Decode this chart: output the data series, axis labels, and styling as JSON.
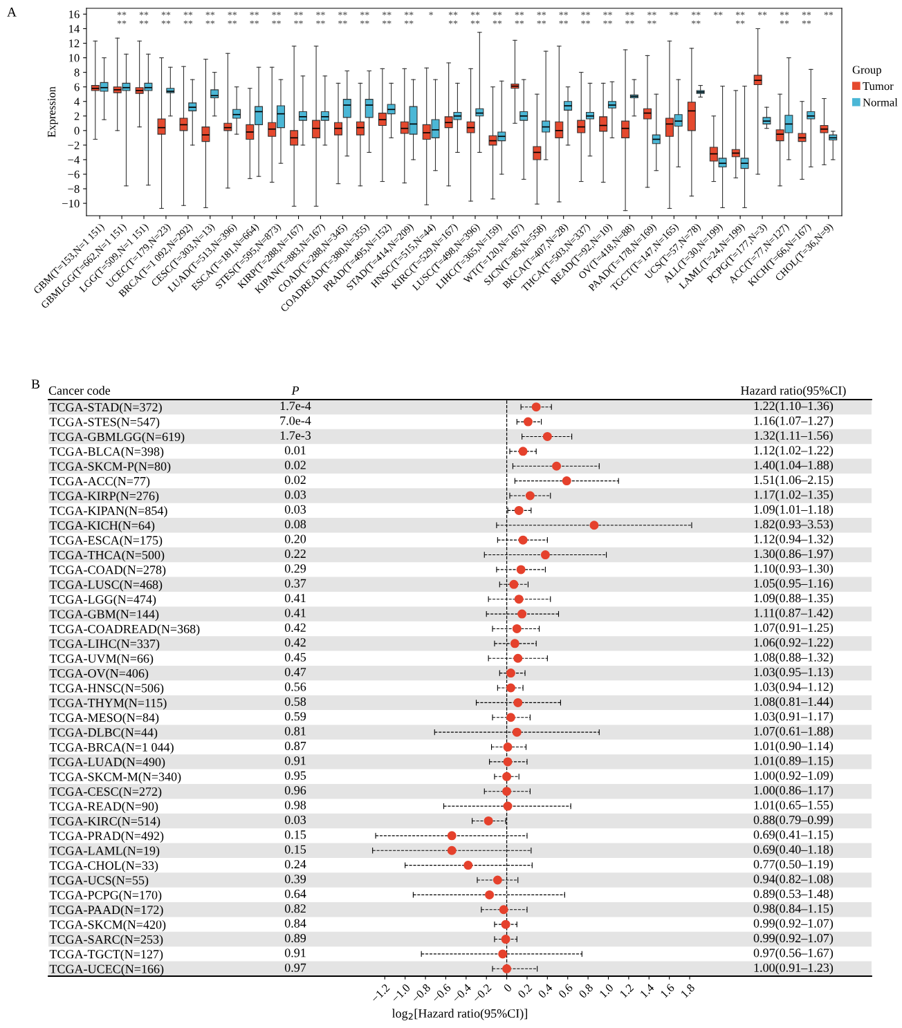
{
  "chart_data": [
    {
      "type": "box",
      "title": "A",
      "ylabel": "Expression",
      "ylim": [
        -11.7,
        16.8
      ],
      "yticks": [
        -10,
        -8,
        -6,
        -4,
        -2,
        0,
        2,
        4,
        6,
        8,
        10,
        12,
        14,
        16
      ],
      "grid": false,
      "legend": "right",
      "legend_title": "Group",
      "categories": [
        "GBM(T=153,N=1 151)",
        "GBMLGG(T=662,N=1 151)",
        "LGG(T=509,N=1 151)",
        "UCEC(T=179,N=23)",
        "BRCA(T=1 092,N=292)",
        "CESC(T=303,N=13)",
        "LUAD(T=513,N=396)",
        "ESCA(T=181,N=664)",
        "STES(T=595,N=873)",
        "KIRP(T=288,N=167)",
        "KIPAN(T=883,N=167)",
        "COAD(T=288,N=345)",
        "COADREAD(T=380,N=355)",
        "PRAD(T=495,N=152)",
        "STAD(T=414,N=209)",
        "HNSC(T=515,N=44)",
        "KIRC(T=529,N=167)",
        "LUSC(T=498,N=396)",
        "LIHC(T=365,N=159)",
        "WT(T=120,N=167)",
        "SJCN(T=85,N=558)",
        "BKCA(T=407,N=28)",
        "THCA(T=503,N=337)",
        "READ(T=92,N=10)",
        "OV(T=418,N=88)",
        "PAAD(T=178,N=169)",
        "TGCT(T=147,N=165)",
        "UCS(T=57,N=78)",
        "ALL(T=30,N=199)",
        "LAML(T=24,N=199)",
        "PCPG(T=177,N=3)",
        "ACC(T=77,N=127)",
        "KICH(T=66,N=167)",
        "CHOL(T=36,N=9)"
      ],
      "series": [
        {
          "name": "Tumor",
          "color": "#e5492e",
          "boxes": [
            {
              "low": -1.2,
              "q1": 5.5,
              "median": 5.8,
              "q3": 6.2,
              "high": 12.3
            },
            {
              "low": 0,
              "q1": 5.2,
              "median": 5.6,
              "q3": 6.0,
              "high": 12.7
            },
            {
              "low": 0.5,
              "q1": 5.1,
              "median": 5.5,
              "q3": 5.9,
              "high": 12.3
            },
            {
              "low": -10.7,
              "q1": -0.5,
              "median": 0.4,
              "q3": 1.6,
              "high": 10.0
            },
            {
              "low": -10.3,
              "q1": 0.0,
              "median": 0.8,
              "q3": 1.7,
              "high": 8.8
            },
            {
              "low": -10.6,
              "q1": -1.5,
              "median": -0.6,
              "q3": 0.5,
              "high": 9.8
            },
            {
              "low": -7.9,
              "q1": 0,
              "median": 0.4,
              "q3": 1.0,
              "high": 10.6
            },
            {
              "low": -6.6,
              "q1": -1.2,
              "median": -0.2,
              "q3": 0.8,
              "high": 5.8
            },
            {
              "low": -7.1,
              "q1": -0.8,
              "median": 0.2,
              "q3": 1.1,
              "high": 8.7
            },
            {
              "low": -10.4,
              "q1": -2.0,
              "median": -1.0,
              "q3": 0.0,
              "high": 11.6
            },
            {
              "low": -10.4,
              "q1": -1.0,
              "median": 0.3,
              "q3": 1.4,
              "high": 11.6
            },
            {
              "low": -7.3,
              "q1": -0.6,
              "median": 0.3,
              "q3": 1.1,
              "high": 6.5
            },
            {
              "low": -7.6,
              "q1": -0.6,
              "median": 0.4,
              "q3": 1.2,
              "high": 6.5
            },
            {
              "low": -7.0,
              "q1": 0.7,
              "median": 1.5,
              "q3": 2.4,
              "high": 8.5
            },
            {
              "low": -7.2,
              "q1": -0.4,
              "median": 0.3,
              "q3": 1.2,
              "high": 8.5
            },
            {
              "low": -10.2,
              "q1": -1.2,
              "median": -0.3,
              "q3": 0.8,
              "high": 8.6
            },
            {
              "low": -7.6,
              "q1": 0.4,
              "median": 1.1,
              "q3": 1.9,
              "high": 9.3
            },
            {
              "low": -9.7,
              "q1": -0.3,
              "median": 0.4,
              "q3": 1.2,
              "high": 8.5
            },
            {
              "low": -9.4,
              "q1": -2.0,
              "median": -1.4,
              "q3": -0.7,
              "high": 6.0
            },
            {
              "low": 1.0,
              "q1": 5.8,
              "median": 6.1,
              "q3": 6.4,
              "high": 12.4
            },
            {
              "low": -10.1,
              "q1": -4.0,
              "median": -3.0,
              "q3": -2.2,
              "high": 5.0
            },
            {
              "low": -9.8,
              "q1": -1.0,
              "median": 0,
              "q3": 1.2,
              "high": 11.6
            },
            {
              "low": -7.0,
              "q1": -0.3,
              "median": 0.5,
              "q3": 1.4,
              "high": 8.0
            },
            {
              "low": -7.1,
              "q1": -0.1,
              "median": 0.7,
              "q3": 1.9,
              "high": 6.5
            },
            {
              "low": -11.0,
              "q1": -1.0,
              "median": 0.3,
              "q3": 1.3,
              "high": 11.1
            },
            {
              "low": -7.8,
              "q1": 1.6,
              "median": 2.4,
              "q3": 3.0,
              "high": 10.3
            },
            {
              "low": -10.7,
              "q1": -0.8,
              "median": 0.9,
              "q3": 1.7,
              "high": 12.3
            },
            {
              "low": -9.0,
              "q1": 0.0,
              "median": 2.7,
              "q3": 3.9,
              "high": 11.3
            },
            {
              "low": -7.0,
              "q1": -4.2,
              "median": -3.2,
              "q3": -2.3,
              "high": 2.0
            },
            {
              "low": -6.5,
              "q1": -3.6,
              "median": -3.1,
              "q3": -2.6,
              "high": 5.5
            },
            {
              "low": -6.0,
              "q1": 6.3,
              "median": 6.9,
              "q3": 7.6,
              "high": 14.0
            },
            {
              "low": -7.6,
              "q1": -1.4,
              "median": -0.5,
              "q3": 0.1,
              "high": 5.0
            },
            {
              "low": -6.7,
              "q1": -1.5,
              "median": -1.0,
              "q3": -0.4,
              "high": 4.0
            },
            {
              "low": -4.7,
              "q1": -0.3,
              "median": 0.2,
              "q3": 0.7,
              "high": 4.4
            }
          ]
        },
        {
          "name": "Normal",
          "color": "#4bb7d6",
          "boxes": [
            {
              "low": 1.5,
              "q1": 5.4,
              "median": 5.9,
              "q3": 6.6,
              "high": 10.0
            },
            {
              "low": -7.6,
              "q1": 5.5,
              "median": 5.9,
              "q3": 6.5,
              "high": 10.5
            },
            {
              "low": -7.5,
              "q1": 5.5,
              "median": 5.9,
              "q3": 6.5,
              "high": 10.5
            },
            {
              "low": 2.0,
              "q1": 5.2,
              "median": 5.4,
              "q3": 5.8,
              "high": 8.7
            },
            {
              "low": -2.0,
              "q1": 2.7,
              "median": 3.2,
              "q3": 3.8,
              "high": 7.0
            },
            {
              "low": 2.0,
              "q1": 4.5,
              "median": 4.8,
              "q3": 5.6,
              "high": 8.0
            },
            {
              "low": -0.5,
              "q1": 1.7,
              "median": 2.2,
              "q3": 2.9,
              "high": 6.0
            },
            {
              "low": -6.3,
              "q1": 0.8,
              "median": 2.6,
              "q3": 3.3,
              "high": 8.7
            },
            {
              "low": -4.5,
              "q1": 0.4,
              "median": 2.3,
              "q3": 3.4,
              "high": 7.0
            },
            {
              "low": -2.0,
              "q1": 1.4,
              "median": 1.9,
              "q3": 2.6,
              "high": 7.5
            },
            {
              "low": -2.0,
              "q1": 1.4,
              "median": 1.9,
              "q3": 2.6,
              "high": 7.5
            },
            {
              "low": -3.5,
              "q1": 1.8,
              "median": 3.5,
              "q3": 4.3,
              "high": 8.2
            },
            {
              "low": -3.0,
              "q1": 1.8,
              "median": 3.5,
              "q3": 4.3,
              "high": 8.2
            },
            {
              "low": -1.0,
              "q1": 2.3,
              "median": 2.9,
              "q3": 3.6,
              "high": 6.5
            },
            {
              "low": -4.0,
              "q1": -0.5,
              "median": 0.9,
              "q3": 3.3,
              "high": 7.0
            },
            {
              "low": -5.5,
              "q1": -1.0,
              "median": 0.1,
              "q3": 1.5,
              "high": 7.0
            },
            {
              "low": -3.0,
              "q1": 1.5,
              "median": 2.0,
              "q3": 2.5,
              "high": 6.5
            },
            {
              "low": -3.0,
              "q1": 2.0,
              "median": 2.4,
              "q3": 3.0,
              "high": 13.5
            },
            {
              "low": -6.0,
              "q1": -1.4,
              "median": -0.8,
              "q3": -0.2,
              "high": 6.8
            },
            {
              "low": -6.7,
              "q1": 1.4,
              "median": 2.0,
              "q3": 2.6,
              "high": 7.0
            },
            {
              "low": -4.0,
              "q1": -0.2,
              "median": 0.5,
              "q3": 1.3,
              "high": 10.9
            },
            {
              "low": -2.0,
              "q1": 2.8,
              "median": 3.4,
              "q3": 4.0,
              "high": 6.0
            },
            {
              "low": -3.5,
              "q1": 1.6,
              "median": 2.0,
              "q3": 2.5,
              "high": 6.5
            },
            {
              "low": -1.0,
              "q1": 3.1,
              "median": 3.5,
              "q3": 4.0,
              "high": 6.7
            },
            {
              "low": 2.0,
              "q1": 4.5,
              "median": 4.7,
              "q3": 4.9,
              "high": 7.0
            },
            {
              "low": -5.5,
              "q1": -1.8,
              "median": -1.2,
              "q3": -0.6,
              "high": 5.0
            },
            {
              "low": -5.0,
              "q1": 0.6,
              "median": 1.3,
              "q3": 2.2,
              "high": 7.0
            },
            {
              "low": 4.6,
              "q1": 5.1,
              "median": 5.3,
              "q3": 5.5,
              "high": 6.2
            },
            {
              "low": -10.6,
              "q1": -5.0,
              "median": -4.5,
              "q3": -3.8,
              "high": 6.1
            },
            {
              "low": -10.6,
              "q1": -5.2,
              "median": -4.5,
              "q3": -3.8,
              "high": 6.1
            },
            {
              "low": 0.3,
              "q1": 0.9,
              "median": 1.3,
              "q3": 1.8,
              "high": 3.2
            },
            {
              "low": -4.0,
              "q1": -0.3,
              "median": 0.9,
              "q3": 2.1,
              "high": 10.0
            },
            {
              "low": -5.0,
              "q1": 1.6,
              "median": 2.0,
              "q3": 2.6,
              "high": 8.4
            },
            {
              "low": -4.0,
              "q1": -1.3,
              "median": -1.0,
              "q3": -0.6,
              "high": -0.1
            }
          ]
        }
      ],
      "annotations": [
        "**\n**",
        "**\n**",
        "**\n**",
        "**\n**",
        "**\n**",
        "**\n**",
        "**\n**",
        "**\n**",
        "**\n**",
        "**\n**",
        "**\n**",
        "**\n**",
        "**\n**",
        "**\n**",
        "*",
        "**\n**",
        "**\n**",
        "**\n**",
        "**\n**",
        "**\n**",
        "**\n**",
        "**\n**",
        "**\n**",
        "**\n**",
        "**\n**",
        "**",
        "**\n**",
        "**",
        "**\n**",
        "**",
        "**\n**",
        "**\n**",
        "**"
      ]
    },
    {
      "type": "scatter",
      "orientation": "horizontal",
      "title": "B",
      "xlabel": "log$_{2}$[Hazard ratio(95%CI)]",
      "color": "#e5412c",
      "marker": "circle",
      "grid": false,
      "xlim": [
        -4.51,
        3.59
      ],
      "xticks": [
        -1.2,
        {
          "value": -1.0,
          "label": "−1.0"
        },
        -0.8,
        -0.6,
        -0.4,
        -0.2,
        0,
        0.2,
        0.4,
        0.6,
        0.8,
        {
          "value": 1.0,
          "label": "1.0"
        },
        1.2,
        1.4,
        1.6,
        1.8
      ],
      "ref_lines": [
        {
          "axis": "x",
          "value": 0,
          "line_style": "dashed",
          "color": "#000000"
        }
      ],
      "categories": [
        "TCGA-STAD(N=372)",
        "TCGA-STES(N=547)",
        "TCGA-GBMLGG(N=619)",
        "TCGA-BLCA(N=398)",
        "TCGA-SKCM-P(N=80)",
        "TCGA-ACC(N=77)",
        "TCGA-KIRP(N=276)",
        "TCGA-KIPAN(N=854)",
        "TCGA-KICH(N=64)",
        "TCGA-ESCA(N=175)",
        "TCGA-THCA(N=500)",
        "TCGA-COAD(N=278)",
        "TCGA-LUSC(N=468)",
        "TCGA-LGG(N=474)",
        "TCGA-GBM(N=144)",
        "TCGA-COADREAD(N=368)",
        "TCGA-LIHC(N=337)",
        "TCGA-UVM(N=66)",
        "TCGA-OV(N=406)",
        "TCGA-HNSC(N=506)",
        "TCGA-THYM(N=115)",
        "TCGA-MESO(N=84)",
        "TCGA-DLBC(N=44)",
        "TCGA-BRCA(N=1 044)",
        "TCGA-LUAD(N=490)",
        "TCGA-SKCM-M(N=340)",
        "TCGA-CESC(N=272)",
        "TCGA-READ(N=90)",
        "TCGA-KIRC(N=514)",
        "TCGA-PRAD(N=492)",
        "TCGA-LAML(N=19)",
        "TCGA-CHOL(N=33)",
        "TCGA-UCS(N=55)",
        "TCGA-PCPG(N=170)",
        "TCGA-PAAD(N=172)",
        "TCGA-SKCM(N=420)",
        "TCGA-SARC(N=253)",
        "TCGA-TGCT(N=127)",
        "TCGA-UCEC(N=166)"
      ],
      "values": [
        0.29,
        0.21,
        0.4,
        0.16,
        0.49,
        0.59,
        0.23,
        0.12,
        0.86,
        0.16,
        0.38,
        0.14,
        0.07,
        0.12,
        0.15,
        0.1,
        0.08,
        0.11,
        0.04,
        0.04,
        0.11,
        0.04,
        0.1,
        0.01,
        0.01,
        0.0,
        0.0,
        0.01,
        -0.18,
        -0.54,
        -0.54,
        -0.38,
        -0.09,
        -0.17,
        -0.03,
        -0.01,
        -0.01,
        -0.04,
        0.0
      ],
      "errors": [
        [
          0.14,
          0.44
        ],
        [
          0.1,
          0.34
        ],
        [
          0.15,
          0.64
        ],
        [
          0.03,
          0.29
        ],
        [
          0.06,
          0.91
        ],
        [
          0.08,
          1.1
        ],
        [
          0.03,
          0.43
        ],
        [
          0.01,
          0.24
        ],
        [
          -0.1,
          1.82
        ],
        [
          -0.09,
          0.4
        ],
        [
          -0.22,
          0.98
        ],
        [
          -0.1,
          0.38
        ],
        [
          -0.07,
          0.21
        ],
        [
          -0.18,
          0.43
        ],
        [
          -0.2,
          0.51
        ],
        [
          -0.14,
          0.32
        ],
        [
          -0.12,
          0.29
        ],
        [
          -0.18,
          0.4
        ],
        [
          -0.07,
          0.18
        ],
        [
          -0.09,
          0.16
        ],
        [
          -0.3,
          0.53
        ],
        [
          -0.14,
          0.23
        ],
        [
          -0.71,
          0.91
        ],
        [
          -0.15,
          0.19
        ],
        [
          -0.17,
          0.2
        ],
        [
          -0.12,
          0.12
        ],
        [
          -0.22,
          0.23
        ],
        [
          -0.62,
          0.63
        ],
        [
          -0.34,
          -0.01
        ],
        [
          -1.29,
          0.2
        ],
        [
          -1.32,
          0.24
        ],
        [
          -1.0,
          0.25
        ],
        [
          -0.29,
          0.11
        ],
        [
          -0.92,
          0.57
        ],
        [
          -0.25,
          0.2
        ],
        [
          -0.12,
          0.1
        ],
        [
          -0.12,
          0.1
        ],
        [
          -0.84,
          0.74
        ],
        [
          -0.14,
          0.3
        ]
      ],
      "annotations": [
        "Cancer code",
        "P",
        "Hazard ratio(95%CI)",
        "1.7e-4",
        "7.0e-4",
        "1.7e-3",
        "0.01",
        "0.02",
        "0.02",
        "0.03",
        "0.03",
        "0.08",
        "0.20",
        "0.22",
        "0.29",
        "0.37",
        "0.41",
        "0.41",
        "0.42",
        "0.42",
        "0.45",
        "0.47",
        "0.56",
        "0.58",
        "0.59",
        "0.81",
        "0.87",
        "0.91",
        "0.95",
        "0.96",
        "0.98",
        "0.03",
        "0.15",
        "0.15",
        "0.24",
        "0.39",
        "0.64",
        "0.82",
        "0.84",
        "0.89",
        "0.91",
        "0.97",
        "1.22(1.10–1.36)",
        "1.16(1.07–1.27)",
        "1.32(1.11–1.56)",
        "1.12(1.02–1.22)",
        "1.40(1.04–1.88)",
        "1.51(1.06–2.15)",
        "1.17(1.02–1.35)",
        "1.09(1.01–1.18)",
        "1.82(0.93–3.53)",
        "1.12(0.94–1.32)",
        "1.30(0.86–1.97)",
        "1.10(0.93–1.30)",
        "1.05(0.95–1.16)",
        "1.09(0.88–1.35)",
        "1.11(0.87–1.42)",
        "1.07(0.91–1.25)",
        "1.06(0.92–1.22)",
        "1.08(0.88–1.32)",
        "1.03(0.95–1.13)",
        "1.03(0.94–1.12)",
        "1.08(0.81–1.44)",
        "1.03(0.91–1.17)",
        "1.07(0.61–1.88)",
        "1.01(0.90–1.14)",
        "1.01(0.89–1.15)",
        "1.00(0.92–1.09)",
        "1.00(0.86–1.17)",
        "1.01(0.65–1.55)",
        "0.88(0.79–0.99)",
        "0.69(0.41–1.15)",
        "0.69(0.40–1.18)",
        "0.77(0.50–1.19)",
        "0.94(0.82–1.08)",
        "0.89(0.53–1.48)",
        "0.98(0.84–1.15)",
        "0.99(0.92–1.07)",
        "0.99(0.92–1.07)",
        "0.97(0.56–1.67)",
        "1.00(0.91–1.23)"
      ]
    }
  ]
}
